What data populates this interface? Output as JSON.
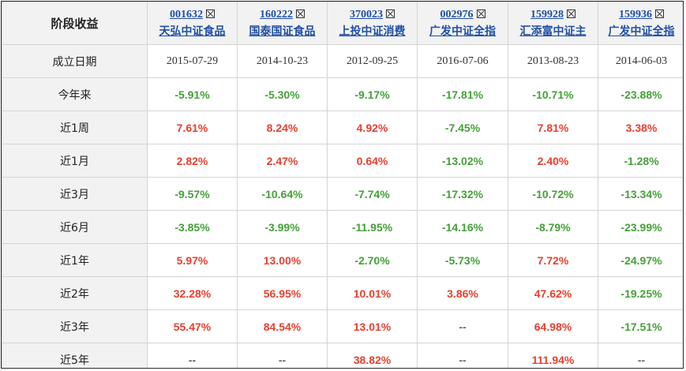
{
  "table": {
    "corner_label": "阶段收益",
    "funds": [
      {
        "code": "001632",
        "name": "天弘中证食品",
        "founded": "2015-07-29"
      },
      {
        "code": "160222",
        "name": "国泰国证食品",
        "founded": "2014-10-23"
      },
      {
        "code": "370023",
        "name": "上投中证消费",
        "founded": "2012-09-25"
      },
      {
        "code": "002976",
        "name": "广发中证全指",
        "founded": "2016-07-06"
      },
      {
        "code": "159928",
        "name": "汇添富中证主",
        "founded": "2013-08-23"
      },
      {
        "code": "159936",
        "name": "广发中证全指",
        "founded": "2014-06-03"
      }
    ],
    "founded_label": "成立日期",
    "rows": [
      {
        "label": "今年来",
        "values": [
          "-5.91%",
          "-5.30%",
          "-9.17%",
          "-17.81%",
          "-10.71%",
          "-23.88%"
        ]
      },
      {
        "label": "近1周",
        "values": [
          "7.61%",
          "8.24%",
          "4.92%",
          "-7.45%",
          "7.81%",
          "3.38%"
        ]
      },
      {
        "label": "近1月",
        "values": [
          "2.82%",
          "2.47%",
          "0.64%",
          "-13.02%",
          "2.40%",
          "-1.28%"
        ]
      },
      {
        "label": "近3月",
        "values": [
          "-9.57%",
          "-10.64%",
          "-7.74%",
          "-17.32%",
          "-10.72%",
          "-13.34%"
        ]
      },
      {
        "label": "近6月",
        "values": [
          "-3.85%",
          "-3.99%",
          "-11.95%",
          "-14.16%",
          "-8.79%",
          "-23.99%"
        ]
      },
      {
        "label": "近1年",
        "values": [
          "5.97%",
          "13.00%",
          "-2.70%",
          "-5.73%",
          "7.72%",
          "-24.97%"
        ]
      },
      {
        "label": "近2年",
        "values": [
          "32.28%",
          "56.95%",
          "10.01%",
          "3.86%",
          "47.62%",
          "-19.25%"
        ]
      },
      {
        "label": "近3年",
        "values": [
          "55.47%",
          "84.54%",
          "13.01%",
          "--",
          "64.98%",
          "-17.51%"
        ]
      },
      {
        "label": "近5年",
        "values": [
          "--",
          "--",
          "38.82%",
          "--",
          "111.94%",
          "--"
        ]
      }
    ]
  },
  "colors": {
    "positive": "#e8402f",
    "negative": "#46a03a",
    "link": "#1f4fa6",
    "header_bg": "#f2f2f2"
  }
}
